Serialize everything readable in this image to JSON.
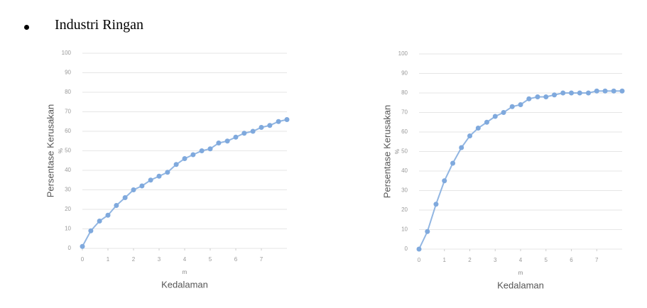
{
  "heading": "Industri Ringan",
  "chart_data": [
    {
      "type": "line",
      "ylabel": "Persentase Kerusakan",
      "yunit": "%",
      "xunit": "m",
      "xlabel": "Kedalaman",
      "x": [
        0,
        0.33,
        0.67,
        1,
        1.33,
        1.67,
        2,
        2.33,
        2.67,
        3,
        3.33,
        3.67,
        4,
        4.33,
        4.67,
        5,
        5.33,
        5.67,
        6,
        6.33,
        6.67,
        7,
        7.33,
        7.67,
        8
      ],
      "series": [
        {
          "color": "#7fa9dd",
          "values": [
            1,
            9,
            14,
            17,
            22,
            26,
            30,
            32,
            35,
            37,
            39,
            43,
            46,
            48,
            50,
            51,
            54,
            55,
            57,
            59,
            60,
            62,
            63,
            65,
            66
          ]
        }
      ],
      "xlim": [
        0,
        8
      ],
      "xticks": [
        0,
        1,
        2,
        3,
        4,
        5,
        6,
        7
      ],
      "ylim": [
        0,
        100
      ],
      "yticks": [
        0,
        10,
        20,
        30,
        40,
        50,
        60,
        70,
        80,
        90,
        100
      ],
      "grid": true
    },
    {
      "type": "line",
      "ylabel": "Persentase Kerusakan",
      "yunit": "%",
      "xunit": "m",
      "xlabel": "Kedalaman",
      "x": [
        0,
        0.33,
        0.67,
        1,
        1.33,
        1.67,
        2,
        2.33,
        2.67,
        3,
        3.33,
        3.67,
        4,
        4.33,
        4.67,
        5,
        5.33,
        5.67,
        6,
        6.33,
        6.67,
        7,
        7.33,
        7.67,
        8
      ],
      "series": [
        {
          "color": "#7fa9dd",
          "values": [
            0,
            9,
            23,
            35,
            44,
            52,
            58,
            62,
            65,
            68,
            70,
            73,
            74,
            77,
            78,
            78,
            79,
            80,
            80,
            80,
            80,
            81,
            81,
            81,
            81
          ]
        }
      ],
      "xlim": [
        0,
        8
      ],
      "xticks": [
        0,
        1,
        2,
        3,
        4,
        5,
        6,
        7
      ],
      "ylim": [
        0,
        100
      ],
      "yticks": [
        0,
        10,
        20,
        30,
        40,
        50,
        60,
        70,
        80,
        90,
        100
      ],
      "grid": true
    }
  ]
}
